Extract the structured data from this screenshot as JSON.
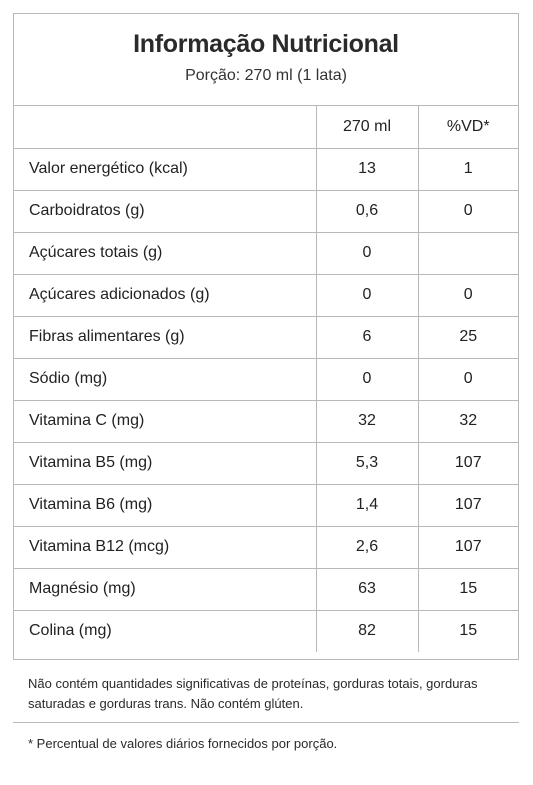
{
  "header": {
    "title": "Informação Nutricional",
    "subtitle": "Porção: 270 ml (1 lata)"
  },
  "table": {
    "columns": [
      "",
      "270 ml",
      "%VD*"
    ],
    "rows": [
      {
        "label": "Valor energético (kcal)",
        "qty": "13",
        "vd": "1"
      },
      {
        "label": "Carboidratos (g)",
        "qty": "0,6",
        "vd": "0"
      },
      {
        "label": "Açúcares totais (g)",
        "qty": "0",
        "vd": ""
      },
      {
        "label": "Açúcares adicionados (g)",
        "qty": "0",
        "vd": "0"
      },
      {
        "label": "Fibras alimentares (g)",
        "qty": "6",
        "vd": "25"
      },
      {
        "label": "Sódio (mg)",
        "qty": "0",
        "vd": "0"
      },
      {
        "label": "Vitamina C (mg)",
        "qty": "32",
        "vd": "32"
      },
      {
        "label": "Vitamina B5 (mg)",
        "qty": "5,3",
        "vd": "107"
      },
      {
        "label": "Vitamina B6 (mg)",
        "qty": "1,4",
        "vd": "107"
      },
      {
        "label": "Vitamina B12 (mcg)",
        "qty": "2,6",
        "vd": "107"
      },
      {
        "label": "Magnésio (mg)",
        "qty": "63",
        "vd": "15"
      },
      {
        "label": "Colina (mg)",
        "qty": "82",
        "vd": "15"
      }
    ]
  },
  "note": "Não contém quantidades significativas de proteínas, gorduras totais, gorduras saturadas e gorduras trans. Não contém glúten.",
  "footnote": "* Percentual de valores diários fornecidos por porção."
}
